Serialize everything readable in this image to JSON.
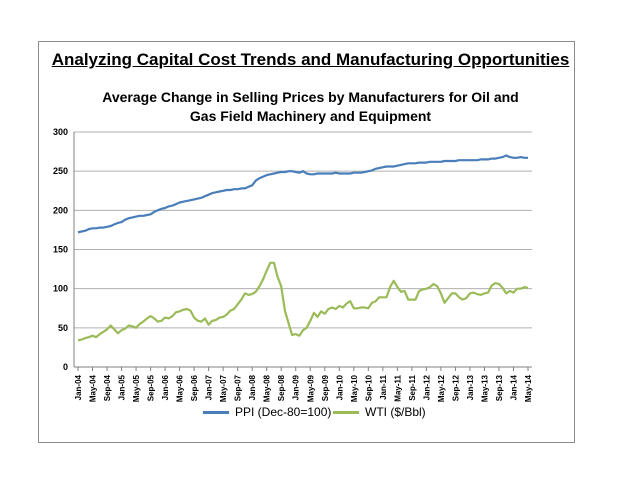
{
  "title": "Analyzing Capital Cost Trends and Manufacturing Opportunities",
  "subtitle_line1": "Average Change in Selling Prices by Manufacturers for Oil and",
  "subtitle_line2": "Gas Field Machinery and Equipment",
  "chart_data": {
    "type": "line",
    "ylim": [
      0,
      300
    ],
    "yticks": [
      "0",
      "50",
      "100",
      "150",
      "200",
      "250",
      "300"
    ],
    "grid": "horizontal",
    "legend_position": "bottom",
    "x": [
      "Jan-04",
      "Feb-04",
      "Mar-04",
      "Apr-04",
      "May-04",
      "Jun-04",
      "Jul-04",
      "Aug-04",
      "Sep-04",
      "Oct-04",
      "Nov-04",
      "Dec-04",
      "Jan-05",
      "Feb-05",
      "Mar-05",
      "Apr-05",
      "May-05",
      "Jun-05",
      "Jul-05",
      "Aug-05",
      "Sep-05",
      "Oct-05",
      "Nov-05",
      "Dec-05",
      "Jan-06",
      "Feb-06",
      "Mar-06",
      "Apr-06",
      "May-06",
      "Jun-06",
      "Jul-06",
      "Aug-06",
      "Sep-06",
      "Oct-06",
      "Nov-06",
      "Dec-06",
      "Jan-07",
      "Feb-07",
      "Mar-07",
      "Apr-07",
      "May-07",
      "Jun-07",
      "Jul-07",
      "Aug-07",
      "Sep-07",
      "Oct-07",
      "Nov-07",
      "Dec-07",
      "Jan-08",
      "Feb-08",
      "Mar-08",
      "Apr-08",
      "May-08",
      "Jun-08",
      "Jul-08",
      "Aug-08",
      "Sep-08",
      "Oct-08",
      "Nov-08",
      "Dec-08",
      "Jan-09",
      "Feb-09",
      "Mar-09",
      "Apr-09",
      "May-09",
      "Jun-09",
      "Jul-09",
      "Aug-09",
      "Sep-09",
      "Oct-09",
      "Nov-09",
      "Dec-09",
      "Jan-10",
      "Feb-10",
      "Mar-10",
      "Apr-10",
      "May-10",
      "Jun-10",
      "Jul-10",
      "Aug-10",
      "Sep-10",
      "Oct-10",
      "Nov-10",
      "Dec-10",
      "Jan-11",
      "Feb-11",
      "Mar-11",
      "Apr-11",
      "May-11",
      "Jun-11",
      "Jul-11",
      "Aug-11",
      "Sep-11",
      "Oct-11",
      "Nov-11",
      "Dec-11",
      "Jan-12",
      "Feb-12",
      "Mar-12",
      "Apr-12",
      "May-12",
      "Jun-12",
      "Jul-12",
      "Aug-12",
      "Sep-12",
      "Oct-12",
      "Nov-12",
      "Dec-12",
      "Jan-13",
      "Feb-13",
      "Mar-13",
      "Apr-13",
      "May-13",
      "Jun-13",
      "Jul-13",
      "Aug-13",
      "Sep-13",
      "Oct-13",
      "Nov-13",
      "Dec-13",
      "Jan-14",
      "Feb-14",
      "Mar-14",
      "Apr-14",
      "May-14"
    ],
    "xtick_labels": [
      "Jan-04",
      "May-04",
      "Sep-04",
      "Jan-05",
      "May-05",
      "Sep-05",
      "Jan-06",
      "May-06",
      "Sep-06",
      "Jan-07",
      "May-07",
      "Sep-07",
      "Jan-08",
      "May-08",
      "Sep-08",
      "Jan-09",
      "May-09",
      "Sep-09",
      "Jan-10",
      "May-10",
      "Sep-10",
      "Jan-11",
      "May-11",
      "Sep-11",
      "Jan-12",
      "May-12",
      "Sep-12",
      "Jan-13",
      "May-13",
      "Sep-13",
      "Jan-14",
      "May-14"
    ],
    "series": [
      {
        "name": "PPI (Dec-80=100)",
        "color": "#4a7ebb",
        "values": [
          172,
          173,
          174,
          176,
          177,
          177,
          178,
          178,
          179,
          180,
          182,
          184,
          185,
          188,
          190,
          191,
          192,
          193,
          193,
          194,
          195,
          198,
          200,
          202,
          203,
          205,
          206,
          208,
          210,
          211,
          212,
          213,
          214,
          215,
          216,
          218,
          220,
          222,
          223,
          224,
          225,
          226,
          226,
          227,
          227,
          228,
          228,
          230,
          232,
          238,
          241,
          243,
          245,
          246,
          247,
          248,
          249,
          249,
          250,
          250,
          249,
          248,
          250,
          247,
          246,
          246,
          247,
          247,
          247,
          247,
          247,
          248,
          247,
          247,
          247,
          247,
          248,
          248,
          248,
          249,
          250,
          251,
          253,
          254,
          255,
          256,
          256,
          256,
          257,
          258,
          259,
          260,
          260,
          260,
          261,
          261,
          261,
          262,
          262,
          262,
          262,
          263,
          263,
          263,
          263,
          264,
          264,
          264,
          264,
          264,
          264,
          265,
          265,
          265,
          266,
          266,
          267,
          268,
          270,
          268,
          267,
          267,
          268,
          267,
          267
        ],
        "legend_label": "PPI (Dec-80=100)"
      },
      {
        "name": "WTI ($/Bbl)",
        "color": "#9bbb59",
        "values": [
          34,
          35,
          37,
          38,
          40,
          38,
          42,
          45,
          48,
          53,
          48,
          43,
          47,
          49,
          53,
          52,
          50,
          55,
          58,
          62,
          65,
          62,
          58,
          59,
          63,
          62,
          65,
          70,
          71,
          73,
          74,
          72,
          63,
          59,
          58,
          62,
          54,
          59,
          60,
          63,
          64,
          67,
          72,
          74,
          80,
          86,
          94,
          92,
          93,
          96,
          103,
          112,
          123,
          133,
          133,
          115,
          103,
          72,
          56,
          41,
          42,
          40,
          47,
          50,
          59,
          69,
          64,
          71,
          68,
          74,
          76,
          74,
          78,
          76,
          81,
          84,
          75,
          75,
          76,
          76,
          75,
          82,
          84,
          89,
          89,
          89,
          102,
          110,
          102,
          96,
          97,
          86,
          86,
          86,
          97,
          99,
          100,
          102,
          106,
          103,
          94,
          82,
          88,
          94,
          94,
          89,
          86,
          88,
          94,
          95,
          93,
          92,
          94,
          95,
          104,
          107,
          106,
          101,
          94,
          97,
          95,
          100,
          100,
          102,
          101
        ]
      }
    ]
  }
}
